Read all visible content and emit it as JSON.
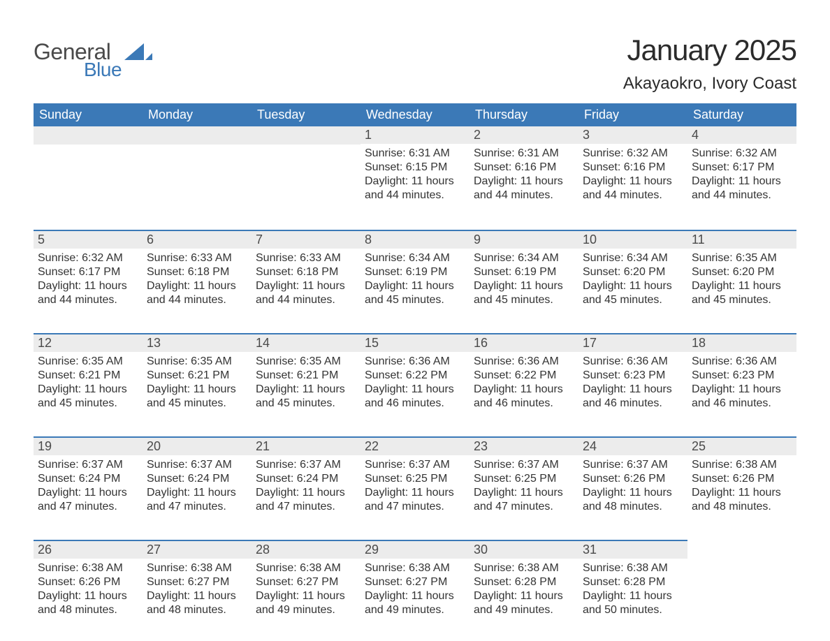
{
  "logo": {
    "general": "General",
    "blue": "Blue",
    "shape_color": "#3b79b7"
  },
  "header": {
    "month_title": "January 2025",
    "location": "Akayaokro, Ivory Coast"
  },
  "colors": {
    "header_bg": "#3b79b7",
    "header_text": "#ffffff",
    "daynum_bg": "#ececec",
    "row_border": "#3b79b7",
    "text": "#333333"
  },
  "fonts": {
    "title_size_pt": 42,
    "location_size_pt": 24,
    "weekday_size_pt": 18,
    "daynum_size_pt": 18,
    "body_size_pt": 16
  },
  "weekdays": [
    "Sunday",
    "Monday",
    "Tuesday",
    "Wednesday",
    "Thursday",
    "Friday",
    "Saturday"
  ],
  "labels": {
    "sunrise": "Sunrise:",
    "sunset": "Sunset:",
    "daylight": "Daylight:"
  },
  "weeks": [
    [
      null,
      null,
      null,
      {
        "day": "1",
        "sunrise": "6:31 AM",
        "sunset": "6:15 PM",
        "daylight": "11 hours and 44 minutes."
      },
      {
        "day": "2",
        "sunrise": "6:31 AM",
        "sunset": "6:16 PM",
        "daylight": "11 hours and 44 minutes."
      },
      {
        "day": "3",
        "sunrise": "6:32 AM",
        "sunset": "6:16 PM",
        "daylight": "11 hours and 44 minutes."
      },
      {
        "day": "4",
        "sunrise": "6:32 AM",
        "sunset": "6:17 PM",
        "daylight": "11 hours and 44 minutes."
      }
    ],
    [
      {
        "day": "5",
        "sunrise": "6:32 AM",
        "sunset": "6:17 PM",
        "daylight": "11 hours and 44 minutes."
      },
      {
        "day": "6",
        "sunrise": "6:33 AM",
        "sunset": "6:18 PM",
        "daylight": "11 hours and 44 minutes."
      },
      {
        "day": "7",
        "sunrise": "6:33 AM",
        "sunset": "6:18 PM",
        "daylight": "11 hours and 44 minutes."
      },
      {
        "day": "8",
        "sunrise": "6:34 AM",
        "sunset": "6:19 PM",
        "daylight": "11 hours and 45 minutes."
      },
      {
        "day": "9",
        "sunrise": "6:34 AM",
        "sunset": "6:19 PM",
        "daylight": "11 hours and 45 minutes."
      },
      {
        "day": "10",
        "sunrise": "6:34 AM",
        "sunset": "6:20 PM",
        "daylight": "11 hours and 45 minutes."
      },
      {
        "day": "11",
        "sunrise": "6:35 AM",
        "sunset": "6:20 PM",
        "daylight": "11 hours and 45 minutes."
      }
    ],
    [
      {
        "day": "12",
        "sunrise": "6:35 AM",
        "sunset": "6:21 PM",
        "daylight": "11 hours and 45 minutes."
      },
      {
        "day": "13",
        "sunrise": "6:35 AM",
        "sunset": "6:21 PM",
        "daylight": "11 hours and 45 minutes."
      },
      {
        "day": "14",
        "sunrise": "6:35 AM",
        "sunset": "6:21 PM",
        "daylight": "11 hours and 45 minutes."
      },
      {
        "day": "15",
        "sunrise": "6:36 AM",
        "sunset": "6:22 PM",
        "daylight": "11 hours and 46 minutes."
      },
      {
        "day": "16",
        "sunrise": "6:36 AM",
        "sunset": "6:22 PM",
        "daylight": "11 hours and 46 minutes."
      },
      {
        "day": "17",
        "sunrise": "6:36 AM",
        "sunset": "6:23 PM",
        "daylight": "11 hours and 46 minutes."
      },
      {
        "day": "18",
        "sunrise": "6:36 AM",
        "sunset": "6:23 PM",
        "daylight": "11 hours and 46 minutes."
      }
    ],
    [
      {
        "day": "19",
        "sunrise": "6:37 AM",
        "sunset": "6:24 PM",
        "daylight": "11 hours and 47 minutes."
      },
      {
        "day": "20",
        "sunrise": "6:37 AM",
        "sunset": "6:24 PM",
        "daylight": "11 hours and 47 minutes."
      },
      {
        "day": "21",
        "sunrise": "6:37 AM",
        "sunset": "6:24 PM",
        "daylight": "11 hours and 47 minutes."
      },
      {
        "day": "22",
        "sunrise": "6:37 AM",
        "sunset": "6:25 PM",
        "daylight": "11 hours and 47 minutes."
      },
      {
        "day": "23",
        "sunrise": "6:37 AM",
        "sunset": "6:25 PM",
        "daylight": "11 hours and 47 minutes."
      },
      {
        "day": "24",
        "sunrise": "6:37 AM",
        "sunset": "6:26 PM",
        "daylight": "11 hours and 48 minutes."
      },
      {
        "day": "25",
        "sunrise": "6:38 AM",
        "sunset": "6:26 PM",
        "daylight": "11 hours and 48 minutes."
      }
    ],
    [
      {
        "day": "26",
        "sunrise": "6:38 AM",
        "sunset": "6:26 PM",
        "daylight": "11 hours and 48 minutes."
      },
      {
        "day": "27",
        "sunrise": "6:38 AM",
        "sunset": "6:27 PM",
        "daylight": "11 hours and 48 minutes."
      },
      {
        "day": "28",
        "sunrise": "6:38 AM",
        "sunset": "6:27 PM",
        "daylight": "11 hours and 49 minutes."
      },
      {
        "day": "29",
        "sunrise": "6:38 AM",
        "sunset": "6:27 PM",
        "daylight": "11 hours and 49 minutes."
      },
      {
        "day": "30",
        "sunrise": "6:38 AM",
        "sunset": "6:28 PM",
        "daylight": "11 hours and 49 minutes."
      },
      {
        "day": "31",
        "sunrise": "6:38 AM",
        "sunset": "6:28 PM",
        "daylight": "11 hours and 50 minutes."
      },
      null
    ]
  ]
}
